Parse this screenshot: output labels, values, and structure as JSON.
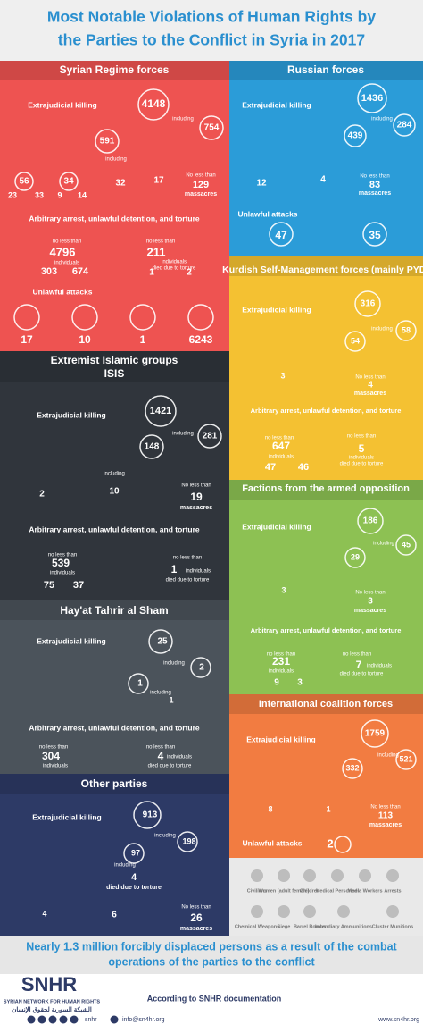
{
  "title": "Most Notable Violations of Human Rights by the Parties to the Conflict in Syria in 2017",
  "labels": {
    "including": "including",
    "no_less_than": "no less than",
    "no_less_than_cap": "No less than",
    "individuals": "individuals",
    "died": "died due to torture",
    "massacres": "massacres",
    "killing": "Extrajudicial killing",
    "arrest": "Arbitrary arrest, unlawful detention, and torture",
    "attacks": "Unlawful attacks"
  },
  "panels": [
    {
      "name": "Syrian Regime forces",
      "color": "#ee5351",
      "killed": 4148,
      "children": 591,
      "women": 754,
      "g1": 56,
      "g1_children": 23,
      "g1_women": 33,
      "g2": 34,
      "g2_children": 9,
      "g2_women": 14,
      "medical": 32,
      "media": 17,
      "massacres": 129,
      "arrested": 4796,
      "arrested_children": 303,
      "arrested_women": 674,
      "torture": 211,
      "torture_children": 1,
      "torture_women": 2,
      "att1": 17,
      "att2": 10,
      "att3": 1,
      "att4": 6243
    },
    {
      "name": "Russian forces",
      "color": "#2b9cd8",
      "killed": 1436,
      "women": 284,
      "children": 439,
      "medical": 12,
      "media": 4,
      "massacres": 83,
      "att1": 47,
      "att2": 35
    },
    {
      "name": "Kurdish Self-Management forces (mainly PYD)",
      "color": "#f4c132",
      "killed": 316,
      "women": 58,
      "children": 54,
      "medical": 3,
      "massacres": 4,
      "arrested": 647,
      "arrested_children": 47,
      "arrested_women": 46,
      "torture": 5
    },
    {
      "name": "Extremist Islamic groups",
      "name2": "ISIS",
      "color": "#30353c",
      "killed": 1421,
      "women": 281,
      "children": 148,
      "medical": 2,
      "media": 10,
      "massacres": 19,
      "arrested": 539,
      "arrested_children": 75,
      "arrested_women": 37,
      "torture": 1
    },
    {
      "name": "Factions from the armed opposition",
      "color": "#8dc153",
      "killed": 186,
      "women": 45,
      "children": 29,
      "medical": 3,
      "massacres": 3,
      "arrested": 231,
      "arrested_children": 9,
      "arrested_women": 3,
      "torture": 7
    },
    {
      "name": "Hay'at Tahrir al Sham",
      "color": "#4b535b",
      "killed": 25,
      "women": 2,
      "children": 1,
      "media": 1,
      "arrested": 304,
      "torture": 4
    },
    {
      "name": "International coalition forces",
      "color": "#f27c41",
      "killed": 1759,
      "women": 521,
      "children": 332,
      "medical": 8,
      "media": 1,
      "massacres": 113,
      "att1": 2
    },
    {
      "name": "Other parties",
      "color": "#2d3a66",
      "killed": 913,
      "women": 198,
      "children": 97,
      "torture": 4,
      "medical": 4,
      "media": 6,
      "massacres": 26
    }
  ],
  "legend": [
    "Civilians",
    "Women (adult female)",
    "Children",
    "Medical Personnel",
    "Media Workers",
    "Arrests",
    "Chemical Weapons",
    "Siege",
    "Barrel Bombs",
    "Incendiary Ammunitions",
    "Cluster Munitions"
  ],
  "displaced": [
    "Nearly 1.3 million forcibly displaced persons as a result of the combat",
    "operations of the parties to the conflict"
  ],
  "footer": {
    "logo": "SNHR",
    "org": "SYRIAN NETWORK FOR HUMAN RIGHTS",
    "org_ar": "الشبكة السورية لحقوق الإنسان",
    "source": "According to SNHR documentation",
    "social": "snhr",
    "email": "info@sn4hr.org",
    "web": "www.sn4hr.org"
  }
}
